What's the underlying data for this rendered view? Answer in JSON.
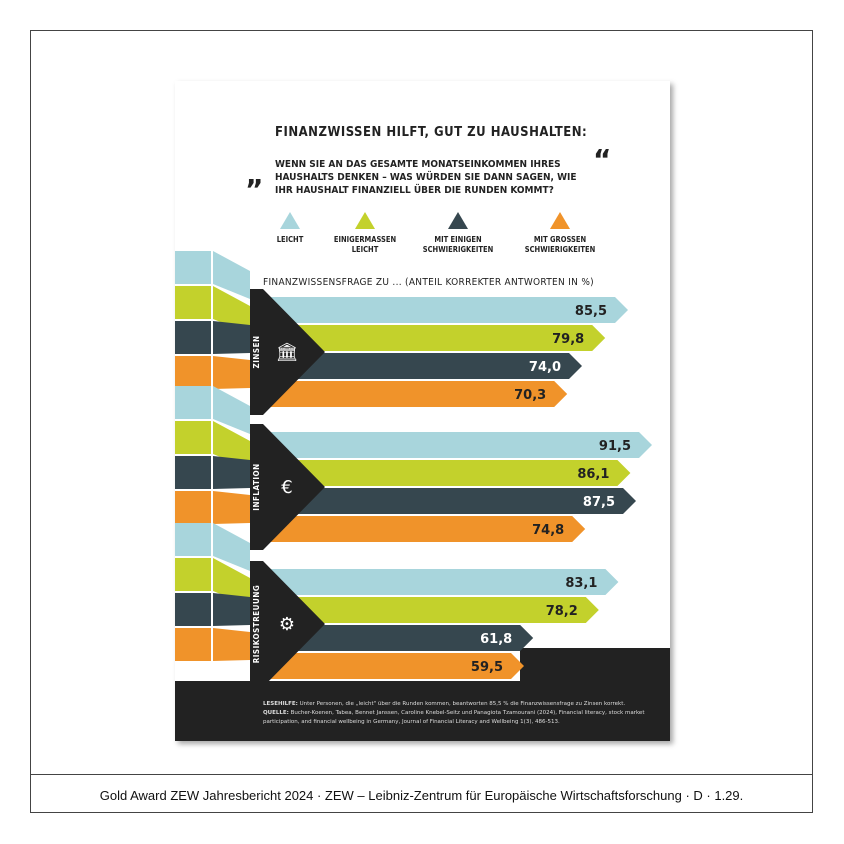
{
  "caption": "Gold Award    ZEW Jahresbericht 2024 · ZEW – Leibniz-Zentrum für Europäische Wirtschaftsforschung · D · 1.29.",
  "colors": {
    "leicht": "#a8d5dc",
    "einigermassen": "#c3d12c",
    "einigen": "#36474f",
    "grossen": "#f0932a",
    "dark": "#222222"
  },
  "chart_data": {
    "type": "bar",
    "title": "FINANZWISSEN HILFT, GUT ZU HAUSHALTEN:",
    "question": [
      "WENN SIE AN DAS GESAMTE MONATSEINKOMMEN IHRES",
      "HAUSHALTS DENKEN – WAS WÜRDEN SIE DANN SAGEN, WIE",
      "IHR HAUSHALT FINANZIELL ÜBER DIE RUNDEN KOMMT?"
    ],
    "subtitle": "FINANZWISSENSFRAGE ZU ... (ANTEIL KORREKTER ANTWORTEN IN %)",
    "legend": [
      [
        "LEICHT"
      ],
      [
        "EINIGERMASSEN",
        "LEICHT"
      ],
      [
        "MIT EINIGEN",
        "SCHWIERIGKEITEN"
      ],
      [
        "MIT GROSSEN",
        "SCHWIERIGKEITEN"
      ]
    ],
    "categories": [
      "ZINSEN",
      "INFLATION",
      "RISIKOSTREUUNG"
    ],
    "icons": [
      "bank-percent-icon",
      "euro-growth-icon",
      "gear-warning-icon"
    ],
    "series": [
      {
        "name": "LEICHT",
        "values": [
          "85,5",
          "91,5",
          "83,1"
        ]
      },
      {
        "name": "EINIGERMASSEN LEICHT",
        "values": [
          "79,8",
          "86,1",
          "78,2"
        ]
      },
      {
        "name": "MIT EINIGEN SCHWIERIGKEITEN",
        "values": [
          "74,0",
          "87,5",
          "61,8"
        ]
      },
      {
        "name": "MIT GROSSEN SCHWIERIGKEITEN",
        "values": [
          "70,3",
          "74,8",
          "59,5"
        ]
      }
    ],
    "notes": [
      [
        "LESEHILFE:",
        " Unter Personen, die „leicht\" über die Runden kommen, beantworten 85,5 % die Finanzwissensfrage zu Zinsen korrekt."
      ],
      [
        "QUELLE:",
        " Bucher-Koenen, Tabea, Bennet Janssen, Caroline Knebel-Seitz und Panagiota Tzamourani (2024), Financial literacy, stock market"
      ],
      [
        "",
        "participation, and financial wellbeing in Germany, Journal of Financial Literacy and Wellbeing 1(3), 486-513."
      ]
    ]
  }
}
